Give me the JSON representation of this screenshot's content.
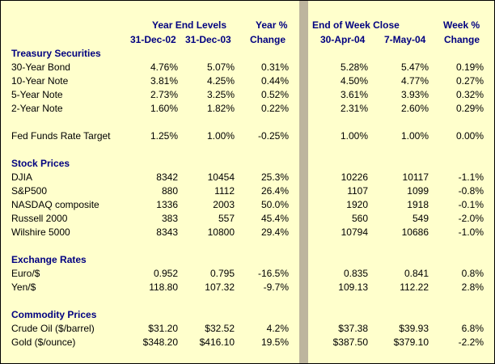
{
  "headers": {
    "year_end_levels": "Year End Levels",
    "year_pct": "Year %",
    "end_of_week_close": "End of Week Close",
    "week_pct": "Week %",
    "d1": "31-Dec-02",
    "d2": "31-Dec-03",
    "change1": "Change",
    "d3": "30-Apr-04",
    "d4": "7-May-04",
    "change2": "Change"
  },
  "sections": {
    "treasury": "Treasury Securities",
    "stocks": "Stock Prices",
    "fx": "Exchange Rates",
    "commodities": "Commodity Prices"
  },
  "rows": {
    "bond30": [
      "30-Year Bond",
      "4.76%",
      "5.07%",
      "0.31%",
      "5.28%",
      "5.47%",
      "0.19%"
    ],
    "note10": [
      "10-Year Note",
      "3.81%",
      "4.25%",
      "0.44%",
      "4.50%",
      "4.77%",
      "0.27%"
    ],
    "note5": [
      "5-Year Note",
      "2.73%",
      "3.25%",
      "0.52%",
      "3.61%",
      "3.93%",
      "0.32%"
    ],
    "note2": [
      "2-Year Note",
      "1.60%",
      "1.82%",
      "0.22%",
      "2.31%",
      "2.60%",
      "0.29%"
    ],
    "fedfunds": [
      "Fed Funds Rate Target",
      "1.25%",
      "1.00%",
      "-0.25%",
      "1.00%",
      "1.00%",
      "0.00%"
    ],
    "djia": [
      "DJIA",
      "8342",
      "10454",
      "25.3%",
      "10226",
      "10117",
      "-1.1%"
    ],
    "sp500": [
      "S&P500",
      "880",
      "1112",
      "26.4%",
      "1107",
      "1099",
      "-0.8%"
    ],
    "nasdaq": [
      "NASDAQ composite",
      "1336",
      "2003",
      "50.0%",
      "1920",
      "1918",
      "-0.1%"
    ],
    "russell": [
      "Russell 2000",
      "383",
      "557",
      "45.4%",
      "560",
      "549",
      "-2.0%"
    ],
    "wilshire": [
      "Wilshire 5000",
      "8343",
      "10800",
      "29.4%",
      "10794",
      "10686",
      "-1.0%"
    ],
    "euro": [
      "Euro/$",
      "0.952",
      "0.795",
      "-16.5%",
      "0.835",
      "0.841",
      "0.8%"
    ],
    "yen": [
      "Yen/$",
      "118.80",
      "107.32",
      "-9.7%",
      "109.13",
      "112.22",
      "2.8%"
    ],
    "crude": [
      "Crude Oil ($/barrel)",
      "$31.20",
      "$32.52",
      "4.2%",
      "$37.38",
      "$39.93",
      "6.8%"
    ],
    "gold": [
      "Gold ($/ounce)",
      "$348.20",
      "$416.10",
      "19.5%",
      "$387.50",
      "$379.10",
      "-2.2%"
    ]
  },
  "colors": {
    "background": "#FFFFCC",
    "header_text": "#000080",
    "divider": "#BDB59E"
  }
}
